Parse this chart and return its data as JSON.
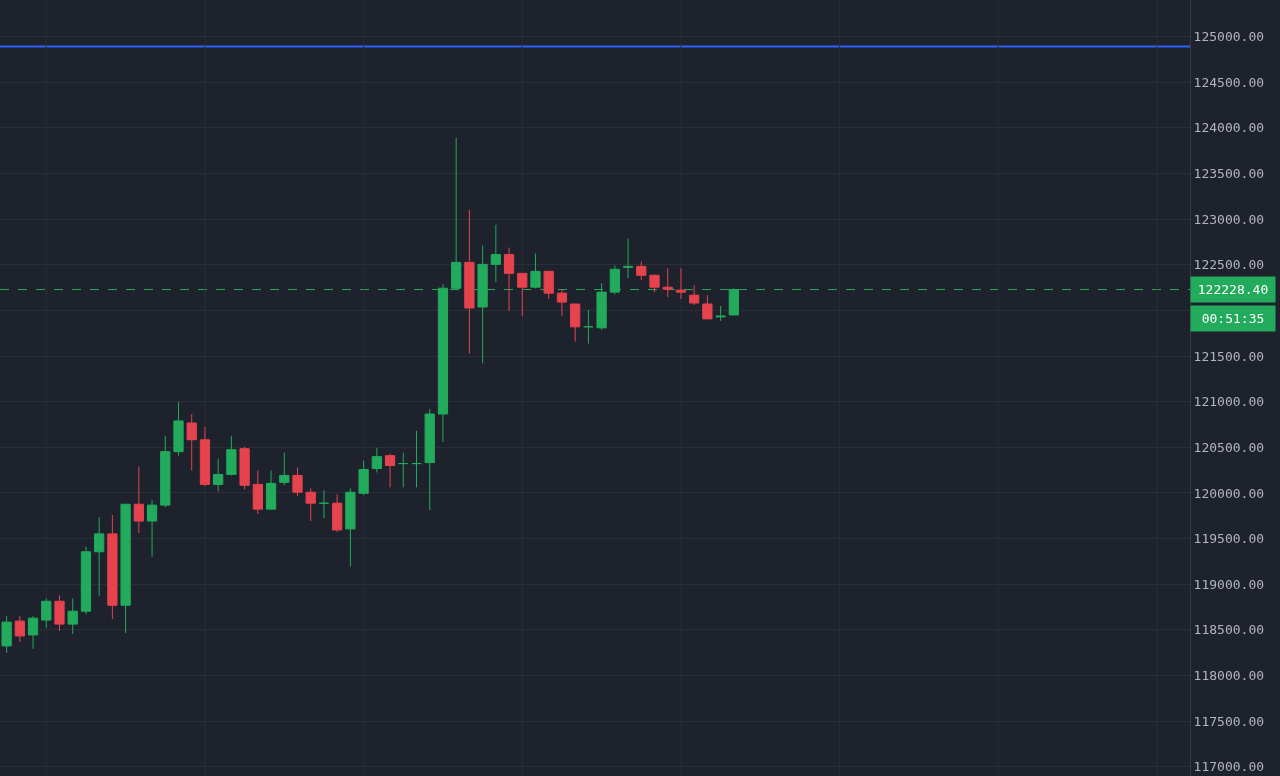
{
  "chart_data": {
    "type": "candlestick",
    "categories": [
      null,
      null,
      null,
      null,
      null,
      null,
      null,
      null,
      null,
      null,
      null,
      null,
      null,
      null,
      null,
      null,
      null,
      null,
      null,
      null,
      null,
      null,
      null,
      null,
      null,
      null,
      null,
      null,
      null,
      null,
      null,
      null,
      null,
      null,
      null,
      null,
      null,
      null,
      null,
      null,
      null,
      null,
      null,
      null,
      null,
      null,
      null,
      null,
      null,
      null,
      null,
      null,
      null,
      null,
      null,
      null,
      null,
      null,
      null,
      null,
      null,
      null,
      null,
      null,
      null,
      null,
      null,
      null,
      null,
      null,
      null,
      null,
      null,
      null,
      null,
      null,
      null,
      null,
      null,
      null,
      null,
      null,
      null,
      null,
      null,
      null,
      null,
      null,
      null,
      null
    ],
    "ohlc": [
      [
        118325,
        118651,
        118249,
        118586
      ],
      [
        118597,
        118651,
        118369,
        118434
      ],
      [
        118445,
        118651,
        118293,
        118629
      ],
      [
        118608,
        118846,
        118521,
        118814
      ],
      [
        118814,
        118879,
        118488,
        118564
      ],
      [
        118564,
        118846,
        118456,
        118705
      ],
      [
        118705,
        119411,
        118673,
        119356
      ],
      [
        119356,
        119736,
        118868,
        119552
      ],
      [
        119552,
        119758,
        118618,
        118770
      ],
      [
        118770,
        119877,
        118467,
        119877
      ],
      [
        119877,
        120290,
        119563,
        119693
      ],
      [
        119693,
        119921,
        119302,
        119867
      ],
      [
        119867,
        120626,
        119845,
        120453
      ],
      [
        120453,
        120995,
        120409,
        120789
      ],
      [
        120767,
        120865,
        120246,
        120583
      ],
      [
        120583,
        120724,
        120073,
        120094
      ],
      [
        120094,
        120377,
        120018,
        120203
      ],
      [
        120203,
        120626,
        120192,
        120474
      ],
      [
        120485,
        120507,
        120040,
        120084
      ],
      [
        120094,
        120246,
        119769,
        119823
      ],
      [
        119823,
        120246,
        119823,
        120105
      ],
      [
        120116,
        120442,
        120084,
        120192
      ],
      [
        120192,
        120279,
        119964,
        120008
      ],
      [
        120008,
        120051,
        119693,
        119888
      ],
      [
        119888,
        120029,
        119725,
        119888
      ],
      [
        119888,
        119986,
        119573,
        119595
      ],
      [
        119606,
        120051,
        119194,
        120008
      ],
      [
        119997,
        120355,
        119975,
        120257
      ],
      [
        120268,
        120496,
        120225,
        120398
      ],
      [
        120409,
        120431,
        120062,
        120301
      ],
      [
        120322,
        120442,
        120062,
        120322
      ],
      [
        120322,
        120681,
        120062,
        120322
      ],
      [
        120333,
        120919,
        119812,
        120865
      ],
      [
        120865,
        122287,
        120561,
        122243
      ],
      [
        122243,
        123893,
        122232,
        122526
      ],
      [
        122526,
        123101,
        121527,
        122026
      ],
      [
        122037,
        122710,
        121419,
        122504
      ],
      [
        122504,
        122938,
        122309,
        122612
      ],
      [
        122612,
        122688,
        121994,
        122406
      ],
      [
        122406,
        122406,
        121939,
        122254
      ],
      [
        122254,
        122623,
        122243,
        122428
      ],
      [
        122428,
        122428,
        122124,
        122189
      ],
      [
        122189,
        122232,
        121939,
        122091
      ],
      [
        122070,
        122070,
        121657,
        121820
      ],
      [
        121820,
        122005,
        121636,
        121820
      ],
      [
        121809,
        122298,
        121788,
        122200
      ],
      [
        122200,
        122493,
        122178,
        122450
      ],
      [
        122471,
        122786,
        122352,
        122482
      ],
      [
        122482,
        122536,
        122330,
        122384
      ],
      [
        122384,
        122395,
        122200,
        122254
      ],
      [
        122254,
        122460,
        122146,
        122232
      ],
      [
        122222,
        122460,
        122124,
        122200
      ],
      [
        122167,
        122276,
        122059,
        122081
      ],
      [
        122070,
        122167,
        121907,
        121907
      ],
      [
        121929,
        122048,
        121885,
        121939
      ],
      [
        121950,
        122243,
        121950,
        122228.4
      ],
      null,
      null,
      null,
      null,
      null,
      null,
      null,
      null,
      null,
      null,
      null,
      null,
      null,
      null,
      null,
      null,
      null,
      null,
      null,
      null,
      null,
      null,
      null,
      null,
      null,
      null,
      null,
      null,
      null,
      null,
      null,
      null,
      null,
      null
    ],
    "ylim": [
      116900,
      125400
    ],
    "yticks": [
      {
        "value": 117000,
        "label": "117000.00"
      },
      {
        "value": 117500,
        "label": "117500.00"
      },
      {
        "value": 118000,
        "label": "118000.00"
      },
      {
        "value": 118500,
        "label": "118500.00"
      },
      {
        "value": 119000,
        "label": "119000.00"
      },
      {
        "value": 119500,
        "label": "119500.00"
      },
      {
        "value": 120000,
        "label": "120000.00"
      },
      {
        "value": 120500,
        "label": "120500.00"
      },
      {
        "value": 121000,
        "label": "121000.00"
      },
      {
        "value": 121500,
        "label": "121500.00"
      },
      {
        "value": 122000,
        "label": null
      },
      {
        "value": 122500,
        "label": "122500.00"
      },
      {
        "value": 123000,
        "label": "123000.00"
      },
      {
        "value": 123500,
        "label": "123500.00"
      },
      {
        "value": 124000,
        "label": "124000.00"
      },
      {
        "value": 124500,
        "label": "124500.00"
      },
      {
        "value": 125000,
        "label": "125000.00"
      }
    ],
    "ref_lines": [
      {
        "axis": "y",
        "value": 124890,
        "color": "#2962ff",
        "line_style": "solid"
      },
      {
        "axis": "y",
        "value": 122228.4,
        "label": "122228.40",
        "color": "#22ab5c",
        "line_style": "dashed"
      }
    ],
    "annotations": [
      "00:51:35"
    ],
    "grid": true,
    "tick_labels": "y"
  }
}
